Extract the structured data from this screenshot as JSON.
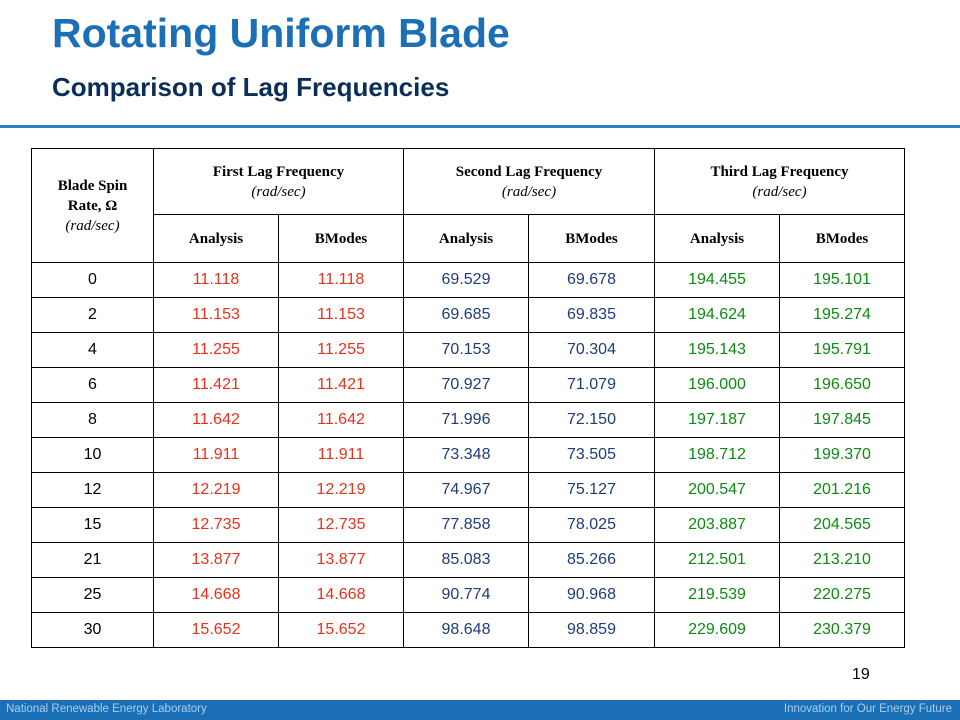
{
  "slide": {
    "title": "Rotating Uniform Blade",
    "subtitle": "Comparison of Lag Frequencies",
    "page_number": "19"
  },
  "footer": {
    "left": "National Renewable Energy Laboratory",
    "right": "Innovation for Our Energy Future"
  },
  "colors": {
    "title": "#1a6fb5",
    "subtitle": "#0a2e57",
    "first_lag_values": "#e8311c",
    "second_lag_values": "#1f3c78",
    "third_lag_values": "#0d8a12",
    "footer_bar": "#1a6fb5"
  },
  "table": {
    "headers": {
      "rate": {
        "line1": "Blade Spin",
        "line2": "Rate, Ω",
        "unit": "(rad/sec)"
      },
      "groups": [
        {
          "name": "First Lag Frequency",
          "unit": "(rad/sec)"
        },
        {
          "name": "Second Lag Frequency",
          "unit": "(rad/sec)"
        },
        {
          "name": "Third Lag Frequency",
          "unit": "(rad/sec)"
        }
      ],
      "subheaders": [
        "Analysis",
        "BModes",
        "Analysis",
        "BModes",
        "Analysis",
        "BModes"
      ]
    },
    "rows": [
      [
        "0",
        "11.118",
        "11.118",
        "69.529",
        "69.678",
        "194.455",
        "195.101"
      ],
      [
        "2",
        "11.153",
        "11.153",
        "69.685",
        "69.835",
        "194.624",
        "195.274"
      ],
      [
        "4",
        "11.255",
        "11.255",
        "70.153",
        "70.304",
        "195.143",
        "195.791"
      ],
      [
        "6",
        "11.421",
        "11.421",
        "70.927",
        "71.079",
        "196.000",
        "196.650"
      ],
      [
        "8",
        "11.642",
        "11.642",
        "71.996",
        "72.150",
        "197.187",
        "197.845"
      ],
      [
        "10",
        "11.911",
        "11.911",
        "73.348",
        "73.505",
        "198.712",
        "199.370"
      ],
      [
        "12",
        "12.219",
        "12.219",
        "74.967",
        "75.127",
        "200.547",
        "201.216"
      ],
      [
        "15",
        "12.735",
        "12.735",
        "77.858",
        "78.025",
        "203.887",
        "204.565"
      ],
      [
        "21",
        "13.877",
        "13.877",
        "85.083",
        "85.266",
        "212.501",
        "213.210"
      ],
      [
        "25",
        "14.668",
        "14.668",
        "90.774",
        "90.968",
        "219.539",
        "220.275"
      ],
      [
        "30",
        "15.652",
        "15.652",
        "98.648",
        "98.859",
        "229.609",
        "230.379"
      ]
    ]
  }
}
